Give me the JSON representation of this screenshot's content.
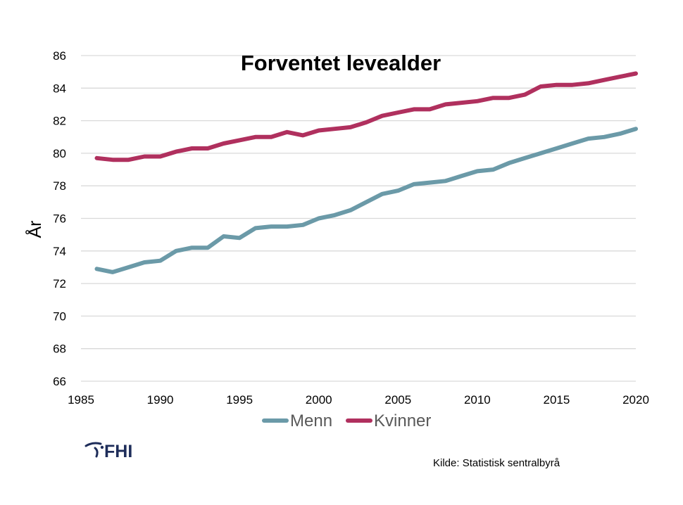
{
  "chart_data": {
    "type": "line",
    "title": "Forventet levealder",
    "xlabel": "",
    "ylabel": "År",
    "xlim": [
      1985,
      2020
    ],
    "ylim": [
      66,
      86
    ],
    "x_ticks": [
      1985,
      1990,
      1995,
      2000,
      2005,
      2010,
      2015,
      2020
    ],
    "y_ticks": [
      66,
      68,
      70,
      72,
      74,
      76,
      78,
      80,
      82,
      84,
      86
    ],
    "grid": true,
    "legend_position": "bottom",
    "x": [
      1986,
      1987,
      1988,
      1989,
      1990,
      1991,
      1992,
      1993,
      1994,
      1995,
      1996,
      1997,
      1998,
      1999,
      2000,
      2001,
      2002,
      2003,
      2004,
      2005,
      2006,
      2007,
      2008,
      2009,
      2010,
      2011,
      2012,
      2013,
      2014,
      2015,
      2016,
      2017,
      2018,
      2019,
      2020
    ],
    "series": [
      {
        "name": "Menn",
        "color": "#6b9aa8",
        "values": [
          72.9,
          72.7,
          73.0,
          73.3,
          73.4,
          74.0,
          74.2,
          74.2,
          74.9,
          74.8,
          75.4,
          75.5,
          75.5,
          75.6,
          76.0,
          76.2,
          76.5,
          77.0,
          77.5,
          77.7,
          78.1,
          78.2,
          78.3,
          78.6,
          78.9,
          79.0,
          79.4,
          79.7,
          80.0,
          80.3,
          80.6,
          80.9,
          81.0,
          81.2,
          81.5
        ]
      },
      {
        "name": "Kvinner",
        "color": "#b0305e",
        "values": [
          79.7,
          79.6,
          79.6,
          79.8,
          79.8,
          80.1,
          80.3,
          80.3,
          80.6,
          80.8,
          81.0,
          81.0,
          81.3,
          81.1,
          81.4,
          81.5,
          81.6,
          81.9,
          82.3,
          82.5,
          82.7,
          82.7,
          83.0,
          83.1,
          83.2,
          83.4,
          83.4,
          83.6,
          84.1,
          84.2,
          84.2,
          84.3,
          84.5,
          84.7,
          84.9
        ]
      }
    ]
  },
  "source_text": "Kilde: Statistisk sentralbyrå",
  "logo": {
    "text": "FHI",
    "color": "#1e2d5a"
  }
}
